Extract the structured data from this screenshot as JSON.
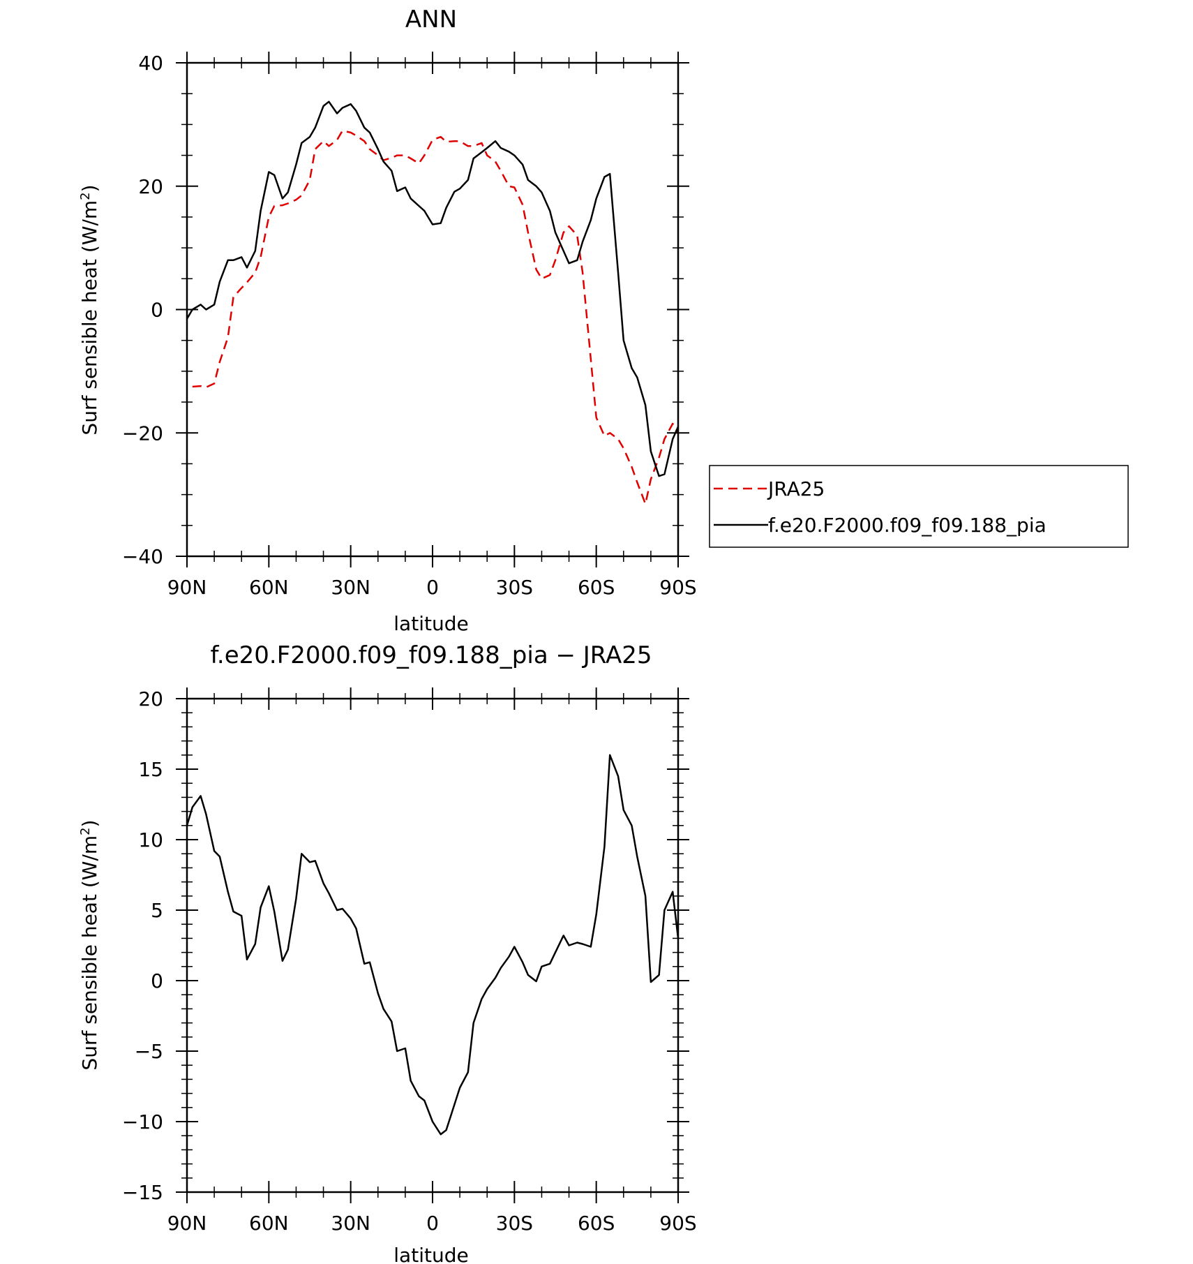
{
  "chart_data": [
    {
      "type": "line",
      "title": "ANN",
      "xlabel": "latitude",
      "ylabel": "Surf sensible heat (W/m²)",
      "xlim": [
        90,
        -90
      ],
      "ylim": [
        -40,
        40
      ],
      "xticks": [
        {
          "value": 90,
          "label": "90N"
        },
        {
          "value": 60,
          "label": "60N"
        },
        {
          "value": 30,
          "label": "30N"
        },
        {
          "value": 0,
          "label": "0"
        },
        {
          "value": -30,
          "label": "30S"
        },
        {
          "value": -60,
          "label": "60S"
        },
        {
          "value": -90,
          "label": "90S"
        }
      ],
      "yticks": [
        {
          "value": 40,
          "label": "40"
        },
        {
          "value": 20,
          "label": "20"
        },
        {
          "value": 0,
          "label": "0"
        },
        {
          "value": -20,
          "label": "−20"
        },
        {
          "value": -40,
          "label": "−40"
        }
      ],
      "legend": {
        "placement": "right",
        "entries": [
          {
            "label": "JRA25",
            "color": "#e00000",
            "dash": "dashed"
          },
          {
            "label": "f.e20.F2000.f09_f09.188_pia",
            "color": "#000000",
            "dash": "solid"
          }
        ]
      },
      "series": [
        {
          "name": "JRA25",
          "color": "#e00000",
          "dash": "dashed",
          "x": [
            88,
            85,
            83,
            80,
            78,
            75,
            73,
            70,
            68,
            65,
            63,
            60,
            58,
            55,
            53,
            50,
            48,
            45,
            43,
            40,
            38,
            35,
            33,
            30,
            28,
            25,
            23,
            20,
            18,
            15,
            13,
            10,
            8,
            5,
            3,
            0,
            -3,
            -5,
            -8,
            -10,
            -13,
            -15,
            -18,
            -20,
            -23,
            -25,
            -28,
            -30,
            -33,
            -35,
            -38,
            -40,
            -43,
            -45,
            -48,
            -50,
            -53,
            -55,
            -58,
            -60,
            -63,
            -65,
            -68,
            -70,
            -73,
            -75,
            -78,
            -80,
            -83,
            -85,
            -88,
            -90
          ],
          "y": [
            -12.5,
            -12.4,
            -12.6,
            -12.0,
            -8.5,
            -4.5,
            2.0,
            3.5,
            4.4,
            6.0,
            8.5,
            15.0,
            16.8,
            16.9,
            17.2,
            17.8,
            18.5,
            21.0,
            26.0,
            27.3,
            26.5,
            27.5,
            29.0,
            28.7,
            28.2,
            27.3,
            26.0,
            25.0,
            24.2,
            24.6,
            25.0,
            25.0,
            24.5,
            23.7,
            25.0,
            27.5,
            28.0,
            27.2,
            27.3,
            27.3,
            26.5,
            26.5,
            27.0,
            25.0,
            24.0,
            22.5,
            20.0,
            19.8,
            17.0,
            12.5,
            6.5,
            5.0,
            5.6,
            8.0,
            12.5,
            13.5,
            12.0,
            6.0,
            -8.0,
            -17.5,
            -20.5,
            -20.0,
            -21.0,
            -22.5,
            -25.5,
            -28.0,
            -31.5,
            -27.5,
            -24.0,
            -21.0,
            -18.5,
            -20.0
          ]
        },
        {
          "name": "f.e20.F2000.f09_f09.188_pia",
          "color": "#000000",
          "dash": "solid",
          "x": [
            90,
            88,
            85,
            83,
            80,
            78,
            75,
            73,
            70,
            68,
            65,
            63,
            60,
            58,
            55,
            53,
            50,
            48,
            45,
            43,
            40,
            38,
            35,
            33,
            30,
            28,
            25,
            23,
            20,
            18,
            15,
            13,
            10,
            8,
            5,
            3,
            0,
            -3,
            -5,
            -8,
            -10,
            -13,
            -15,
            -18,
            -20,
            -23,
            -25,
            -28,
            -30,
            -33,
            -35,
            -38,
            -40,
            -43,
            -45,
            -48,
            -50,
            -53,
            -55,
            -58,
            -60,
            -63,
            -65,
            -68,
            -70,
            -73,
            -75,
            -78,
            -80,
            -83,
            -85,
            -88,
            -90
          ],
          "y": [
            -1.5,
            0.0,
            0.8,
            0.0,
            0.8,
            4.5,
            8.0,
            8.0,
            8.5,
            6.8,
            9.5,
            16.0,
            22.3,
            21.8,
            18.0,
            19.0,
            23.5,
            27.0,
            28.0,
            29.5,
            33.0,
            33.7,
            31.8,
            32.7,
            33.3,
            32.2,
            29.5,
            28.7,
            26.0,
            24.0,
            22.5,
            19.2,
            19.8,
            18.0,
            16.8,
            16.0,
            13.8,
            14.0,
            16.5,
            19.1,
            19.6,
            21.0,
            24.5,
            25.5,
            26.2,
            27.3,
            26.2,
            25.6,
            25.0,
            23.5,
            21.0,
            20.0,
            19.0,
            16.0,
            12.5,
            9.5,
            7.5,
            8.0,
            11.0,
            14.5,
            18.0,
            21.5,
            22.0,
            6.0,
            -5.0,
            -9.5,
            -11.0,
            -15.5,
            -23.0,
            -27.0,
            -26.7,
            -21.0,
            -19.0
          ]
        }
      ]
    },
    {
      "type": "line",
      "title": "f.e20.F2000.f09_f09.188_pia − JRA25",
      "xlabel": "latitude",
      "ylabel": "Surf sensible heat (W/m²)",
      "xlim": [
        90,
        -90
      ],
      "ylim": [
        -15,
        20
      ],
      "xticks": [
        {
          "value": 90,
          "label": "90N"
        },
        {
          "value": 60,
          "label": "60N"
        },
        {
          "value": 30,
          "label": "30N"
        },
        {
          "value": 0,
          "label": "0"
        },
        {
          "value": -30,
          "label": "30S"
        },
        {
          "value": -60,
          "label": "60S"
        },
        {
          "value": -90,
          "label": "90S"
        }
      ],
      "yticks": [
        {
          "value": 20,
          "label": "20"
        },
        {
          "value": 15,
          "label": "15"
        },
        {
          "value": 10,
          "label": "10"
        },
        {
          "value": 5,
          "label": "5"
        },
        {
          "value": 0,
          "label": "0"
        },
        {
          "value": -5,
          "label": "−5"
        },
        {
          "value": -10,
          "label": "−10"
        },
        {
          "value": -15,
          "label": "−15"
        }
      ],
      "series": [
        {
          "color": "#000000",
          "dash": "solid",
          "x": [
            90,
            88,
            85,
            83,
            80,
            78,
            75,
            73,
            70,
            68,
            65,
            63,
            60,
            58,
            55,
            53,
            50,
            48,
            45,
            43,
            40,
            38,
            35,
            33,
            30,
            28,
            25,
            23,
            20,
            18,
            15,
            13,
            10,
            8,
            5,
            3,
            0,
            -3,
            -5,
            -8,
            -10,
            -13,
            -15,
            -18,
            -20,
            -23,
            -25,
            -28,
            -30,
            -33,
            -35,
            -38,
            -40,
            -43,
            -45,
            -48,
            -50,
            -53,
            -55,
            -58,
            -60,
            -63,
            -65,
            -68,
            -70,
            -73,
            -75,
            -78,
            -80,
            -83,
            -85,
            -88,
            -90
          ],
          "y": [
            11.0,
            12.3,
            13.1,
            11.8,
            9.2,
            8.8,
            6.3,
            4.9,
            4.6,
            1.5,
            2.6,
            5.2,
            6.7,
            4.9,
            1.4,
            2.2,
            5.8,
            9.0,
            8.4,
            8.5,
            6.9,
            6.2,
            5.0,
            5.1,
            4.4,
            3.7,
            1.2,
            1.3,
            -0.9,
            -2.0,
            -2.9,
            -5.0,
            -4.8,
            -7.1,
            -8.2,
            -8.5,
            -10.0,
            -10.9,
            -10.6,
            -8.8,
            -7.6,
            -6.5,
            -3.0,
            -1.3,
            -0.6,
            0.2,
            0.9,
            1.7,
            2.4,
            1.3,
            0.4,
            -0.05,
            1.0,
            1.2,
            2.0,
            3.2,
            2.5,
            2.7,
            2.6,
            2.4,
            4.7,
            9.5,
            16.0,
            14.5,
            12.1,
            11.0,
            8.8,
            6.0,
            -0.1,
            0.4,
            5.0,
            6.3,
            3.0
          ]
        }
      ]
    }
  ]
}
